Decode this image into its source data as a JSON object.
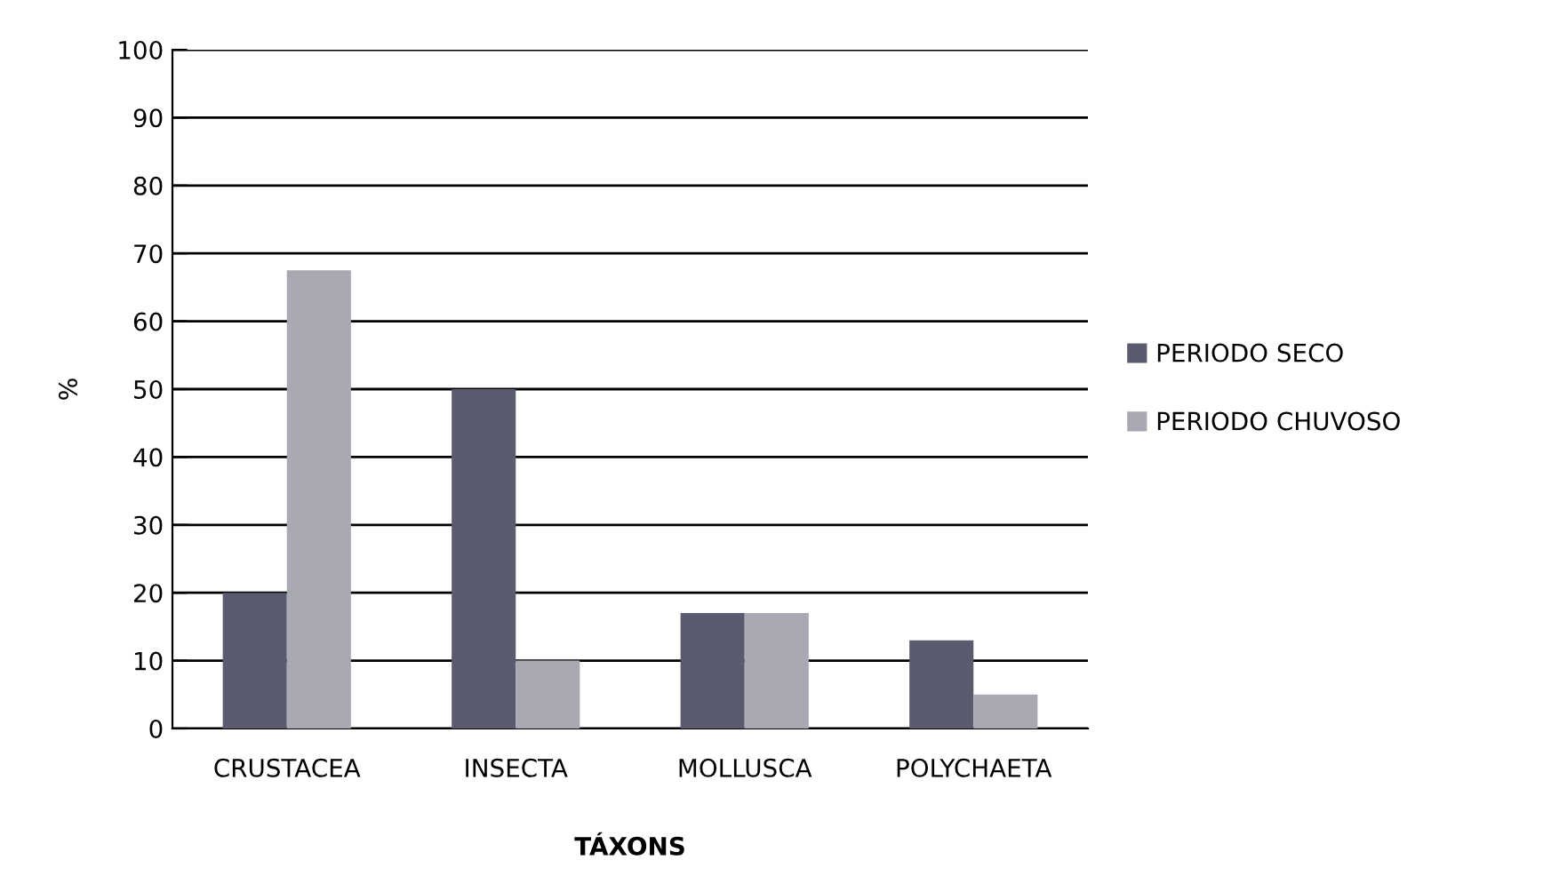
{
  "chart_data": {
    "type": "bar",
    "xlabel": "TÁXONS",
    "ylabel": "%",
    "categories": [
      "CRUSTACEA",
      "INSECTA",
      "MOLLUSCA",
      "POLYCHAETA"
    ],
    "series": [
      {
        "name": "PERIODO SECO",
        "color": "#5a5b6e",
        "values": [
          20,
          50,
          17,
          13
        ]
      },
      {
        "name": "PERIODO CHUVOSO",
        "color": "#a9a9b4",
        "values": [
          67.5,
          10,
          17,
          5
        ]
      }
    ],
    "ylim": [
      0,
      100
    ],
    "yticks": [
      0,
      10,
      20,
      30,
      40,
      50,
      60,
      70,
      80,
      90,
      100
    ],
    "grid": "y",
    "legend": "right"
  }
}
